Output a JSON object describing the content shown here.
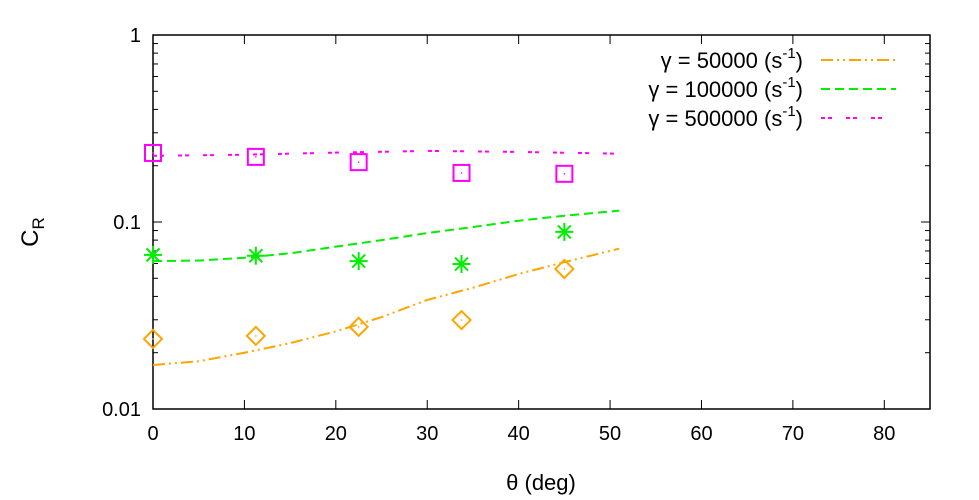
{
  "chart_data": {
    "type": "scatter",
    "title": "",
    "xlabel": "θ (deg)",
    "ylabel": "C",
    "ylabel_subscript": "R",
    "xlim": [
      0,
      85
    ],
    "ylim": [
      0.01,
      1
    ],
    "yscale": "log",
    "grid": false,
    "legend_placement": "top-right",
    "xticks": [
      0,
      10,
      20,
      30,
      40,
      50,
      60,
      70,
      80
    ],
    "xtick_labels": [
      "0",
      "10",
      "20",
      "30",
      "40",
      "50",
      "60",
      "70",
      "80"
    ],
    "yticks": [
      0.01,
      0.1,
      1
    ],
    "ytick_labels": [
      "0.01",
      "0.1",
      "1"
    ],
    "series": [
      {
        "name": "γ = 50000 (s",
        "name_superscript": "-1",
        "name_suffix": ")",
        "color": "#ffa500",
        "line_style": "dash-dot-dot",
        "marker": "diamond",
        "points": [
          [
            0,
            0.0237
          ],
          [
            11.25,
            0.0246
          ],
          [
            22.5,
            0.0275
          ],
          [
            33.75,
            0.0299
          ],
          [
            45,
            0.0561
          ]
        ],
        "line": [
          [
            0,
            0.0172
          ],
          [
            5,
            0.018
          ],
          [
            10,
            0.02
          ],
          [
            15,
            0.0225
          ],
          [
            20,
            0.026
          ],
          [
            25,
            0.031
          ],
          [
            30,
            0.0383
          ],
          [
            35,
            0.0445
          ],
          [
            40,
            0.0527
          ],
          [
            45,
            0.061
          ],
          [
            51,
            0.072
          ]
        ]
      },
      {
        "name": "γ = 100000 (s",
        "name_superscript": "-1",
        "name_suffix": ")",
        "color": "#00ee00",
        "line_style": "dashed",
        "marker": "star",
        "points": [
          [
            0,
            0.0667
          ],
          [
            11.25,
            0.066
          ],
          [
            22.5,
            0.0618
          ],
          [
            33.75,
            0.0596
          ],
          [
            45,
            0.0885
          ]
        ],
        "line": [
          [
            0,
            0.0618
          ],
          [
            5,
            0.0622
          ],
          [
            10,
            0.0644
          ],
          [
            15,
            0.068
          ],
          [
            20,
            0.0738
          ],
          [
            25,
            0.08
          ],
          [
            30,
            0.0873
          ],
          [
            35,
            0.094
          ],
          [
            40,
            0.1016
          ],
          [
            45,
            0.108
          ],
          [
            51,
            0.115
          ]
        ]
      },
      {
        "name": "γ = 500000 (s",
        "name_superscript": "-1",
        "name_suffix": ")",
        "color": "#ff00ff",
        "line_style": "dotted",
        "marker": "square",
        "points": [
          [
            0,
            0.234
          ],
          [
            11.25,
            0.223
          ],
          [
            22.5,
            0.209
          ],
          [
            33.75,
            0.183
          ],
          [
            45,
            0.181
          ]
        ],
        "line": [
          [
            0,
            0.226
          ],
          [
            10,
            0.229
          ],
          [
            20,
            0.235
          ],
          [
            30,
            0.24
          ],
          [
            40,
            0.237
          ],
          [
            51,
            0.232
          ]
        ]
      }
    ]
  }
}
